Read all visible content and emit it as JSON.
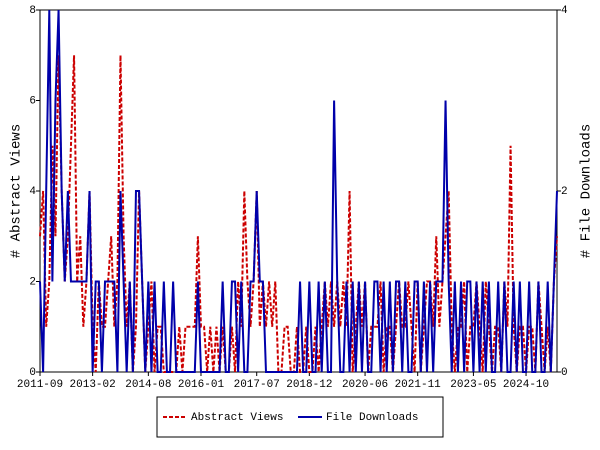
{
  "chart_data": {
    "type": "line",
    "ylabel": "# Abstract Views",
    "y2label": "# File Downloads",
    "categories": [
      "2011-09",
      null,
      null,
      null,
      null,
      null,
      null,
      null,
      null,
      null,
      null,
      null,
      null,
      null,
      null,
      null,
      null,
      "2013-02",
      null,
      null,
      null,
      null,
      null,
      null,
      null,
      null,
      null,
      null,
      null,
      null,
      null,
      null,
      null,
      null,
      null,
      "2014-08",
      null,
      null,
      null,
      null,
      null,
      null,
      null,
      null,
      null,
      null,
      null,
      null,
      null,
      null,
      null,
      null,
      "2016-01",
      null,
      null,
      null,
      null,
      null,
      null,
      null,
      null,
      null,
      null,
      null,
      null,
      null,
      null,
      null,
      null,
      null,
      "2017-07",
      null,
      null,
      null,
      null,
      null,
      null,
      null,
      null,
      null,
      null,
      null,
      null,
      null,
      null,
      null,
      null,
      "2018-12",
      null,
      null,
      null,
      null,
      null,
      null,
      null,
      null,
      null,
      null,
      null,
      null,
      null,
      null,
      null,
      null,
      null,
      "2020-06",
      null,
      null,
      null,
      null,
      null,
      null,
      null,
      null,
      null,
      null,
      null,
      null,
      null,
      null,
      null,
      null,
      "2021-11",
      null,
      null,
      null,
      null,
      null,
      null,
      null,
      null,
      null,
      null,
      null,
      null,
      null,
      null,
      null,
      null,
      null,
      "2023-05",
      null,
      null,
      null,
      null,
      null,
      null,
      null,
      null,
      null,
      null,
      null,
      null,
      null,
      null,
      null,
      null,
      "2024-10",
      null,
      null,
      null,
      null,
      null,
      null,
      null,
      null,
      null,
      null
    ],
    "series": [
      {
        "name": "Abstract Views",
        "color": "#cc0000",
        "dash": true,
        "values": [
          3,
          4,
          1,
          2,
          5,
          3,
          7,
          4,
          2,
          3,
          5,
          7,
          2,
          3,
          1,
          2,
          4,
          1,
          0,
          2,
          1,
          1,
          2,
          3,
          1,
          2,
          7,
          3,
          1,
          2,
          0,
          1,
          4,
          2,
          0,
          1,
          2,
          0,
          1,
          1,
          0,
          0,
          0,
          0,
          0,
          1,
          0,
          1,
          1,
          1,
          1,
          3,
          1,
          1,
          0,
          1,
          0,
          1,
          0,
          1,
          0,
          0,
          1,
          0,
          2,
          1,
          4,
          2,
          1,
          2,
          4,
          1,
          2,
          1,
          2,
          1,
          2,
          0,
          0,
          1,
          1,
          0,
          0,
          1,
          0,
          0,
          1,
          0,
          0,
          1,
          0,
          1,
          2,
          1,
          2,
          1,
          2,
          1,
          2,
          1,
          4,
          0,
          1,
          2,
          1,
          2,
          0,
          1,
          1,
          1,
          2,
          0,
          1,
          1,
          0,
          1,
          2,
          1,
          1,
          2,
          1,
          0,
          2,
          0,
          1,
          2,
          2,
          1,
          3,
          1,
          2,
          3,
          4,
          1,
          0,
          1,
          1,
          2,
          0,
          1,
          1,
          2,
          1,
          0,
          2,
          1,
          0,
          1,
          1,
          0,
          2,
          1,
          5,
          1,
          0,
          1,
          1,
          0,
          1,
          1,
          0,
          2,
          1,
          0,
          1,
          0,
          2,
          3
        ]
      },
      {
        "name": "File Downloads",
        "color": "#0000aa",
        "axis": "y2",
        "values": [
          1,
          0,
          2,
          4,
          1,
          3,
          4,
          2,
          1,
          2,
          1,
          1,
          1,
          1,
          1,
          1,
          2,
          0,
          1,
          1,
          0,
          1,
          1,
          1,
          1,
          0,
          2,
          1,
          0,
          1,
          0,
          2,
          2,
          1,
          0,
          1,
          0,
          1,
          0,
          0,
          1,
          0,
          0,
          1,
          0,
          0,
          0,
          0,
          0,
          0,
          0,
          1,
          0,
          0,
          0,
          0,
          0,
          0,
          0,
          1,
          0,
          0,
          1,
          1,
          0,
          1,
          0,
          0,
          1,
          1,
          2,
          1,
          1,
          0,
          0,
          0,
          0,
          0,
          0,
          0,
          0,
          0,
          0,
          0,
          1,
          0,
          0,
          1,
          0,
          0,
          1,
          0,
          1,
          0,
          0,
          3,
          1,
          0,
          0,
          1,
          0,
          1,
          0,
          1,
          0,
          1,
          0,
          0,
          1,
          1,
          0,
          1,
          0,
          1,
          0,
          1,
          1,
          0,
          1,
          0,
          0,
          1,
          1,
          0,
          1,
          0,
          1,
          0,
          1,
          1,
          1,
          3,
          1,
          0,
          1,
          0,
          1,
          0,
          1,
          1,
          0,
          1,
          0,
          1,
          0,
          1,
          0,
          0,
          1,
          0,
          1,
          0,
          0,
          1,
          0,
          1,
          0,
          0,
          1,
          0,
          0,
          1,
          0,
          0,
          1,
          0,
          1,
          2
        ]
      }
    ],
    "ylim": [
      0,
      8
    ],
    "yticks": [
      0,
      2,
      4,
      6,
      8
    ],
    "y2lim": [
      0,
      4
    ],
    "y2ticks": [
      0,
      2,
      4
    ],
    "legend": "bottom"
  }
}
